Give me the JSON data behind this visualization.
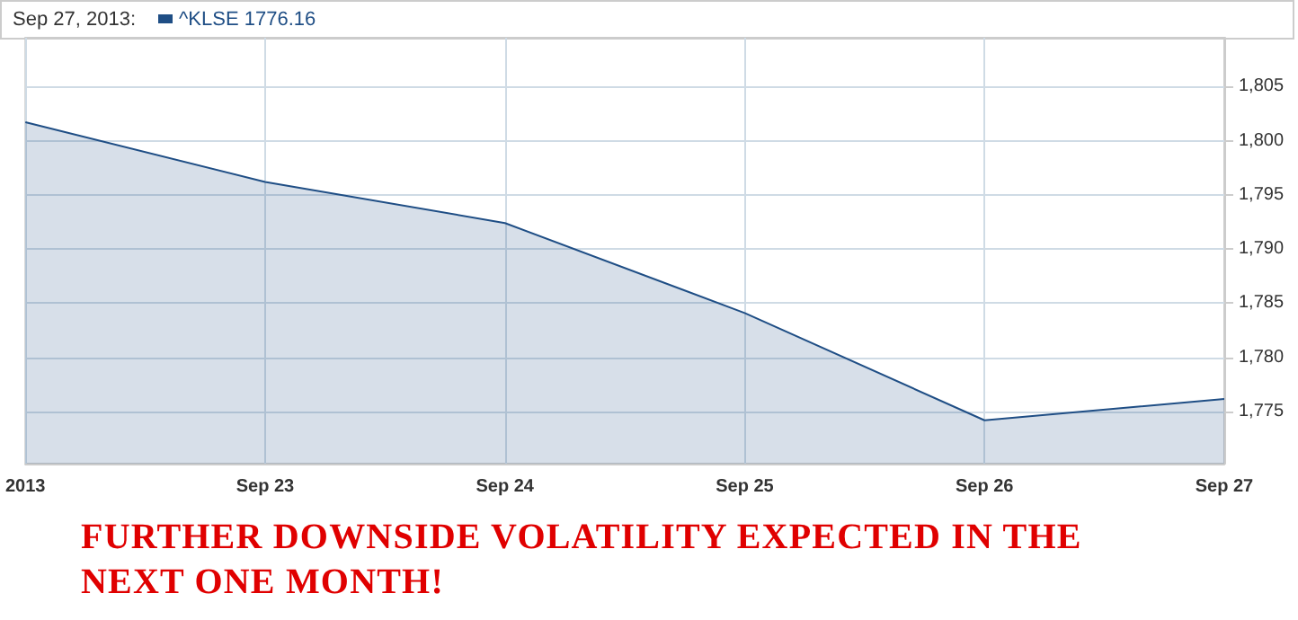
{
  "chart_data": {
    "type": "area",
    "title": "Sep 27, 2013:",
    "categories": [
      "2013",
      "Sep 23",
      "Sep 24",
      "Sep 25",
      "Sep 26",
      "Sep 27"
    ],
    "series": [
      {
        "name": "^KLSE 1776.16",
        "color": "#1f4e85",
        "values": [
          1801.7,
          1796.2,
          1792.4,
          1784.1,
          1774.2,
          1776.16
        ]
      }
    ],
    "ylim": [
      1770.2,
      1809.5
    ],
    "yticks": [
      {
        "value": 1775,
        "label": "1,775"
      },
      {
        "value": 1780,
        "label": "1,780"
      },
      {
        "value": 1785,
        "label": "1,785"
      },
      {
        "value": 1790,
        "label": "1,790"
      },
      {
        "value": 1795,
        "label": "1,795"
      },
      {
        "value": 1800,
        "label": "1,800"
      },
      {
        "value": 1805,
        "label": "1,805"
      }
    ],
    "grid": true,
    "legend": "top left",
    "marker": "none",
    "annotations": [
      "FURTHER DOWNSIDE VOLATILITY EXPECTED IN THE NEXT ONE MONTH!"
    ]
  }
}
